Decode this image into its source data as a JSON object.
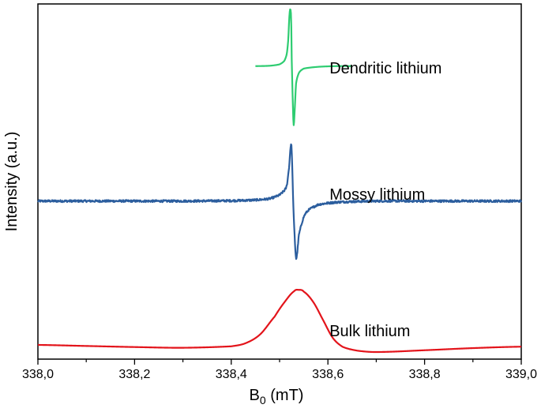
{
  "chart_data": {
    "type": "line",
    "title": "",
    "xlabel": "B",
    "xlabel_subscript": "0",
    "xlabel_unit": " (mT)",
    "ylabel": "Intensity (a.u.)",
    "xlim": [
      338.0,
      339.0
    ],
    "x_reversed": false,
    "y_ticks_labeled": false,
    "grid": false,
    "legend": "none",
    "x_ticks": [
      {
        "value": 338.0,
        "label": "338,0"
      },
      {
        "value": 338.2,
        "label": "338,2"
      },
      {
        "value": 338.4,
        "label": "338,4"
      },
      {
        "value": 338.6,
        "label": "338,6"
      },
      {
        "value": 338.8,
        "label": "338,8"
      },
      {
        "value": 339.0,
        "label": "339,0"
      }
    ],
    "x_minor_ticks": [
      338.1,
      338.3,
      338.5,
      338.7,
      338.9
    ],
    "series": [
      {
        "name": "Dendritic lithium",
        "color": "#2ecc71",
        "label_x": 338.6,
        "label_y": 0.82,
        "x": [
          338.45,
          338.48,
          338.5,
          338.51,
          338.515,
          338.518,
          338.52,
          338.522,
          338.524,
          338.525,
          338.527,
          338.529,
          338.531,
          338.534,
          338.54,
          338.55,
          338.58,
          338.62,
          338.65
        ],
        "y": [
          0.825,
          0.826,
          0.83,
          0.84,
          0.86,
          0.9,
          0.96,
          0.985,
          0.96,
          0.85,
          0.74,
          0.66,
          0.695,
          0.775,
          0.806,
          0.818,
          0.823,
          0.825,
          0.825
        ]
      },
      {
        "name": "Mossy lithium",
        "color": "#2c5e9e",
        "label_x": 338.6,
        "label_y": 0.464,
        "noise": 0.003,
        "x": [
          338.0,
          338.1,
          338.2,
          338.3,
          338.4,
          338.45,
          338.48,
          338.5,
          338.51,
          338.515,
          338.52,
          338.523,
          338.525,
          338.527,
          338.529,
          338.531,
          338.533,
          338.535,
          338.54,
          338.55,
          338.56,
          338.58,
          338.62,
          338.7,
          338.8,
          338.9,
          339.0
        ],
        "y": [
          0.445,
          0.445,
          0.445,
          0.445,
          0.446,
          0.448,
          0.452,
          0.462,
          0.475,
          0.49,
          0.545,
          0.6,
          0.59,
          0.5,
          0.41,
          0.35,
          0.3,
          0.285,
          0.35,
          0.4,
          0.42,
          0.435,
          0.442,
          0.445,
          0.445,
          0.445,
          0.445
        ]
      },
      {
        "name": "Bulk lithium",
        "color": "#e3141b",
        "label_x": 338.6,
        "label_y": 0.08,
        "x": [
          338.0,
          338.1,
          338.2,
          338.3,
          338.4,
          338.43,
          338.46,
          338.49,
          338.51,
          338.53,
          338.54,
          338.55,
          338.57,
          338.59,
          338.61,
          338.63,
          338.66,
          338.7,
          338.8,
          338.9,
          339.0
        ],
        "y": [
          0.04,
          0.037,
          0.034,
          0.032,
          0.036,
          0.045,
          0.07,
          0.12,
          0.16,
          0.191,
          0.195,
          0.19,
          0.16,
          0.11,
          0.06,
          0.035,
          0.024,
          0.02,
          0.025,
          0.031,
          0.035
        ]
      }
    ]
  }
}
